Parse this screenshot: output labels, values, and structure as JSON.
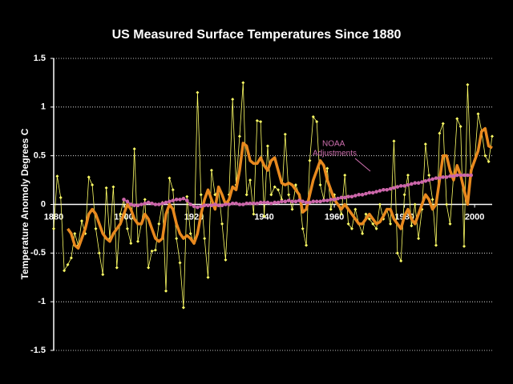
{
  "chart_data": {
    "type": "line",
    "title": "US Measured Surface Temperatures Since 1880",
    "ylabel": "Temperature Anomoly Degrees C",
    "xlim": [
      1880,
      2005
    ],
    "xticks": [
      1880,
      1900,
      1920,
      1940,
      1960,
      1980,
      2000
    ],
    "ylim": [
      -1.5,
      1.5
    ],
    "yticks": [
      -1.5,
      -1,
      -0.5,
      0,
      0.5,
      1,
      1.5
    ],
    "grid": true,
    "annotation": {
      "lines": [
        "NOAA",
        "Adjustments"
      ],
      "color": "#d070b0"
    },
    "series": [
      {
        "color": "#ffff66",
        "style": "thin-diamond",
        "x": [
          1880,
          1881,
          1882,
          1883,
          1884,
          1885,
          1886,
          1887,
          1888,
          1889,
          1890,
          1891,
          1892,
          1893,
          1894,
          1895,
          1896,
          1897,
          1898,
          1899,
          1900,
          1901,
          1902,
          1903,
          1904,
          1905,
          1906,
          1907,
          1908,
          1909,
          1910,
          1911,
          1912,
          1913,
          1914,
          1915,
          1916,
          1917,
          1918,
          1919,
          1920,
          1921,
          1922,
          1923,
          1924,
          1925,
          1926,
          1927,
          1928,
          1929,
          1930,
          1931,
          1932,
          1933,
          1934,
          1935,
          1936,
          1937,
          1938,
          1939,
          1940,
          1941,
          1942,
          1943,
          1944,
          1945,
          1946,
          1947,
          1948,
          1949,
          1950,
          1951,
          1952,
          1953,
          1954,
          1955,
          1956,
          1957,
          1958,
          1959,
          1960,
          1961,
          1962,
          1963,
          1964,
          1965,
          1966,
          1967,
          1968,
          1969,
          1970,
          1971,
          1972,
          1973,
          1974,
          1975,
          1976,
          1977,
          1978,
          1979,
          1980,
          1981,
          1982,
          1983,
          1984,
          1985,
          1986,
          1987,
          1988,
          1989,
          1990,
          1991,
          1992,
          1993,
          1994,
          1995,
          1996,
          1997,
          1998,
          1999,
          2000,
          2001,
          2002,
          2003,
          2004,
          2005
        ],
        "values": [
          -0.25,
          0.29,
          0.07,
          -0.68,
          -0.62,
          -0.55,
          -0.3,
          -0.42,
          -0.17,
          -0.3,
          0.28,
          0.2,
          -0.25,
          -0.5,
          -0.72,
          0.17,
          -0.35,
          0.18,
          -0.65,
          -0.1,
          0.05,
          -0.25,
          -0.4,
          0.57,
          -0.38,
          -0.2,
          0.05,
          -0.65,
          -0.48,
          -0.47,
          -0.2,
          0.02,
          -0.89,
          0.27,
          0.15,
          -0.35,
          -0.6,
          -1.06,
          0.08,
          -0.3,
          -0.4,
          1.15,
          0.1,
          -0.35,
          -0.75,
          0.35,
          0.1,
          0.15,
          -0.2,
          -0.57,
          0.1,
          1.08,
          0.2,
          0.7,
          1.25,
          0.1,
          0.25,
          -0.1,
          0.86,
          0.85,
          -0.12,
          0.6,
          0.1,
          0.18,
          0.15,
          0.05,
          0.72,
          0.1,
          -0.05,
          0.2,
          0.1,
          -0.25,
          -0.42,
          0.45,
          0.9,
          0.85,
          0.2,
          0.05,
          0.37,
          -0.05,
          0.1,
          0.0,
          -0.1,
          0.3,
          -0.2,
          -0.25,
          -0.05,
          -0.2,
          -0.3,
          -0.1,
          -0.15,
          -0.2,
          -0.25,
          0.0,
          -0.15,
          -0.05,
          -0.2,
          0.65,
          -0.5,
          -0.58,
          0.1,
          0.3,
          -0.22,
          0.0,
          -0.35,
          -0.05,
          0.62,
          0.3,
          0.05,
          -0.42,
          0.73,
          0.83,
          0.0,
          -0.2,
          0.3,
          0.88,
          0.8,
          -0.43,
          1.23,
          0.3,
          0.45,
          0.93,
          0.75,
          0.5,
          0.44,
          0.7
        ]
      },
      {
        "color": "#e8891e",
        "style": "thick",
        "x": [
          1884,
          1885,
          1886,
          1887,
          1888,
          1889,
          1890,
          1891,
          1892,
          1893,
          1894,
          1895,
          1896,
          1897,
          1898,
          1899,
          1900,
          1901,
          1902,
          1903,
          1904,
          1905,
          1906,
          1907,
          1908,
          1909,
          1910,
          1911,
          1912,
          1913,
          1914,
          1915,
          1916,
          1917,
          1918,
          1919,
          1920,
          1921,
          1922,
          1923,
          1924,
          1925,
          1926,
          1927,
          1928,
          1929,
          1930,
          1931,
          1932,
          1933,
          1934,
          1935,
          1936,
          1937,
          1938,
          1939,
          1940,
          1941,
          1942,
          1943,
          1944,
          1945,
          1946,
          1947,
          1948,
          1949,
          1950,
          1951,
          1952,
          1953,
          1954,
          1955,
          1956,
          1957,
          1958,
          1959,
          1960,
          1961,
          1962,
          1963,
          1964,
          1965,
          1966,
          1967,
          1968,
          1969,
          1970,
          1971,
          1972,
          1973,
          1974,
          1975,
          1976,
          1977,
          1978,
          1979,
          1980,
          1981,
          1982,
          1983,
          1984,
          1985,
          1986,
          1987,
          1988,
          1989,
          1990,
          1991,
          1992,
          1993,
          1994,
          1995,
          1996,
          1997,
          1998,
          1999,
          2000,
          2001,
          2002,
          2003,
          2004,
          2005
        ],
        "values": [
          -0.25,
          -0.3,
          -0.42,
          -0.45,
          -0.35,
          -0.25,
          -0.1,
          -0.05,
          -0.1,
          -0.2,
          -0.3,
          -0.35,
          -0.38,
          -0.3,
          -0.25,
          -0.2,
          -0.1,
          0.0,
          -0.05,
          -0.15,
          -0.2,
          -0.2,
          -0.1,
          -0.15,
          -0.25,
          -0.35,
          -0.38,
          -0.35,
          -0.1,
          0.0,
          -0.05,
          -0.2,
          -0.3,
          -0.35,
          -0.32,
          -0.35,
          -0.4,
          -0.3,
          -0.1,
          0.05,
          0.15,
          0.05,
          -0.05,
          0.18,
          0.1,
          0.0,
          0.05,
          0.18,
          0.15,
          0.35,
          0.63,
          0.6,
          0.45,
          0.42,
          0.42,
          0.48,
          0.4,
          0.35,
          0.45,
          0.48,
          0.35,
          0.22,
          0.2,
          0.22,
          0.2,
          0.15,
          0.1,
          -0.08,
          -0.05,
          0.1,
          0.25,
          0.35,
          0.45,
          0.4,
          0.25,
          0.15,
          0.05,
          0.0,
          -0.05,
          0.0,
          -0.05,
          -0.1,
          -0.15,
          -0.2,
          -0.2,
          -0.15,
          -0.1,
          -0.15,
          -0.2,
          -0.18,
          -0.12,
          -0.05,
          -0.05,
          -0.15,
          -0.2,
          -0.25,
          -0.12,
          -0.05,
          -0.15,
          -0.2,
          -0.1,
          0.0,
          0.1,
          0.05,
          -0.05,
          0.0,
          0.25,
          0.5,
          0.5,
          0.35,
          0.25,
          0.4,
          0.3,
          0.15,
          0.0,
          0.35,
          0.45,
          0.55,
          0.75,
          0.78,
          0.6,
          0.58
        ]
      },
      {
        "color": "#cc66aa",
        "style": "dots",
        "x": [
          1900,
          1901,
          1902,
          1903,
          1904,
          1905,
          1906,
          1907,
          1908,
          1909,
          1910,
          1911,
          1912,
          1913,
          1914,
          1915,
          1916,
          1917,
          1918,
          1919,
          1920,
          1921,
          1922,
          1923,
          1924,
          1925,
          1926,
          1927,
          1928,
          1929,
          1930,
          1931,
          1932,
          1933,
          1934,
          1935,
          1936,
          1937,
          1938,
          1939,
          1940,
          1941,
          1942,
          1943,
          1944,
          1945,
          1946,
          1947,
          1948,
          1949,
          1950,
          1951,
          1952,
          1953,
          1954,
          1955,
          1956,
          1957,
          1958,
          1959,
          1960,
          1961,
          1962,
          1963,
          1964,
          1965,
          1966,
          1967,
          1968,
          1969,
          1970,
          1971,
          1972,
          1973,
          1974,
          1975,
          1976,
          1977,
          1978,
          1979,
          1980,
          1981,
          1982,
          1983,
          1984,
          1985,
          1986,
          1987,
          1988,
          1989,
          1990,
          1991,
          1992,
          1993,
          1994,
          1995,
          1996,
          1997,
          1998,
          1999
        ],
        "values": [
          0.05,
          0.03,
          0.0,
          -0.01,
          -0.01,
          0.0,
          0.01,
          0.02,
          0.01,
          0.0,
          0.0,
          0.01,
          0.02,
          0.03,
          0.04,
          0.05,
          0.05,
          0.06,
          0.04,
          0.0,
          -0.02,
          -0.03,
          -0.02,
          -0.01,
          -0.01,
          -0.01,
          0.0,
          -0.01,
          -0.01,
          0.0,
          0.0,
          0.01,
          0.01,
          0.0,
          0.0,
          0.01,
          0.01,
          0.01,
          0.01,
          0.02,
          0.02,
          0.02,
          0.01,
          0.02,
          0.02,
          0.03,
          0.03,
          0.04,
          0.03,
          0.03,
          0.04,
          0.03,
          0.02,
          0.02,
          0.03,
          0.03,
          0.03,
          0.04,
          0.04,
          0.05,
          0.05,
          0.06,
          0.07,
          0.07,
          0.08,
          0.08,
          0.09,
          0.1,
          0.1,
          0.11,
          0.12,
          0.12,
          0.13,
          0.14,
          0.15,
          0.15,
          0.16,
          0.17,
          0.18,
          0.19,
          0.19,
          0.2,
          0.21,
          0.22,
          0.22,
          0.23,
          0.24,
          0.25,
          0.26,
          0.27,
          0.27,
          0.28,
          0.28,
          0.29,
          0.29,
          0.3,
          0.3,
          0.3,
          0.3,
          0.3
        ]
      }
    ]
  }
}
